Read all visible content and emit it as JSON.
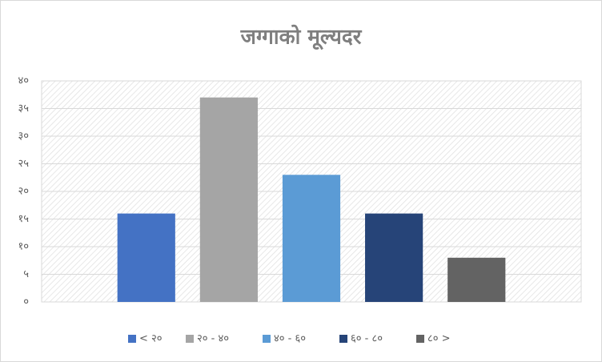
{
  "chart_data": {
    "type": "bar",
    "title": "जग्गाको मूल्यदर",
    "categories": [
      null
    ],
    "series": [
      {
        "name": "< २०",
        "color": "#4472c4",
        "values": [
          16
        ]
      },
      {
        "name": "२० - ४०",
        "color": "#a5a5a5",
        "values": [
          37
        ]
      },
      {
        "name": "४० - ६०",
        "color": "#5b9bd5",
        "values": [
          23
        ]
      },
      {
        "name": "६० - ८०",
        "color": "#264478",
        "values": [
          16
        ]
      },
      {
        "name": "८० >",
        "color": "#636363",
        "values": [
          8
        ]
      }
    ],
    "ylim": [
      0,
      40
    ],
    "yticks": [
      {
        "value": 0,
        "label": "०"
      },
      {
        "value": 5,
        "label": "५"
      },
      {
        "value": 10,
        "label": "१०"
      },
      {
        "value": 15,
        "label": "१५"
      },
      {
        "value": 20,
        "label": "२०"
      },
      {
        "value": 25,
        "label": "२५"
      },
      {
        "value": 30,
        "label": "३०"
      },
      {
        "value": 35,
        "label": "३५"
      },
      {
        "value": 40,
        "label": "४०"
      }
    ],
    "grid": true,
    "legend": "bottom"
  }
}
